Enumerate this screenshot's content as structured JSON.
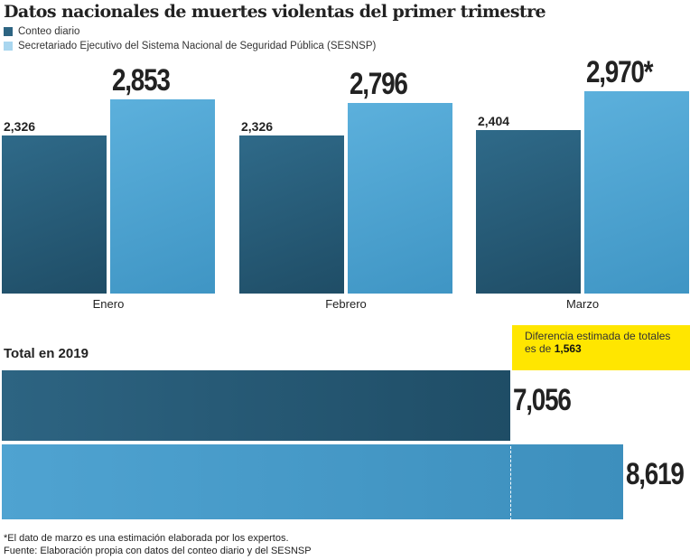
{
  "chart_data": [
    {
      "type": "bar",
      "title": "Datos nacionales de muertes violentas del primer trimestre",
      "categories": [
        "Enero",
        "Febrero",
        "Marzo"
      ],
      "series": [
        {
          "name": "Conteo diario",
          "values": [
            2326,
            2326,
            2404
          ],
          "labels": [
            "2,326",
            "2,326",
            "2,404"
          ],
          "color": "#2d6482"
        },
        {
          "name": "Secretariado Ejecutivo del Sistema Nacional de Seguridad Pública (SESNSP)",
          "values": [
            2853,
            2796,
            2970
          ],
          "labels": [
            "2,853",
            "2,796",
            "2,970*"
          ],
          "color": "#4fa3d1"
        }
      ],
      "ylim": [
        0,
        3000
      ],
      "grid": false,
      "legend": "top-left"
    },
    {
      "type": "bar",
      "orientation": "horizontal",
      "title": "Total en 2019",
      "series": [
        {
          "name": "Conteo diario",
          "value": 7056,
          "label": "7,056",
          "color": "#2d6482"
        },
        {
          "name": "SESNSP",
          "value": 8619,
          "label": "8,619",
          "color": "#4fa3d1"
        }
      ],
      "annotation": {
        "text": "Diferencia estimada de totales es de",
        "value": "1,563",
        "color": "#ffe600"
      }
    }
  ],
  "footer": {
    "note": "*El dato de marzo es una estimación elaborada por los expertos.",
    "source": "Fuente: Elaboración propia con datos del conteo diario y del SESNSP"
  }
}
